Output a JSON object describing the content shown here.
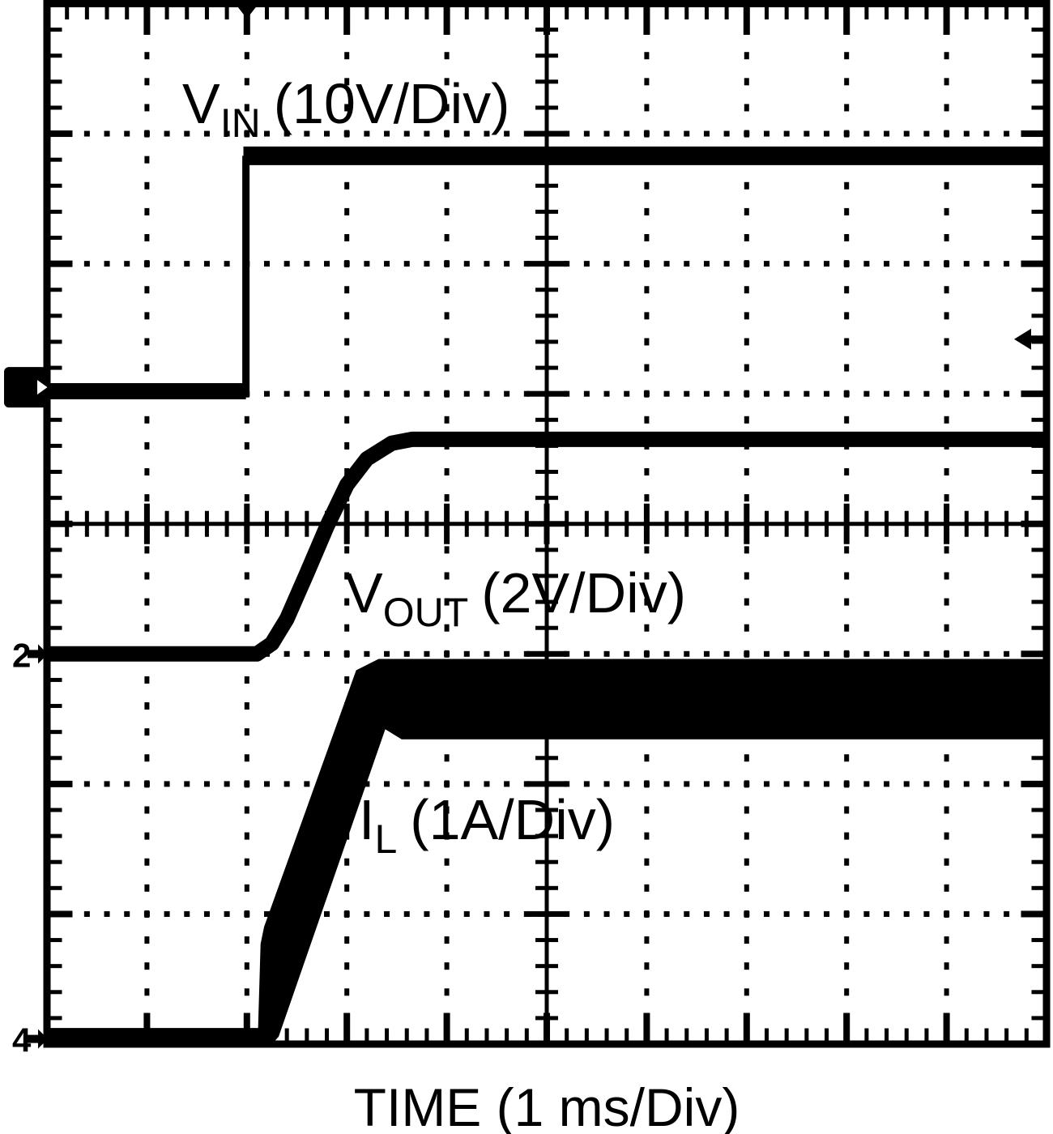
{
  "figure": {
    "kind": "oscilloscope-waveform-capture",
    "background_color": "#ffffff",
    "foreground_color": "#000000"
  },
  "chart_data": {
    "type": "line",
    "title": "",
    "xlabel": "TIME (1 ms/Div)",
    "ylabel": "",
    "x_divisions": 10,
    "y_divisions": 8,
    "time_per_div": "1 ms",
    "grid": "dotted oscilloscope graticule with solid center cross and edge tick marks",
    "legend_position": "inline-labels",
    "series": [
      {
        "id": "vin",
        "label": {
          "main": "V",
          "sub": "IN",
          "rest": "(10V/Div)"
        },
        "scale_per_div": "10V",
        "baseline_div_from_bottom": 5.02,
        "high_level_div_from_bottom": 6.83,
        "step_time_div": 2.0,
        "estimated_values": "input steps from 0 V to ~18 V at t = 2 divisions",
        "segments": [
          {
            "points": [
              [
                0,
                5.02
              ],
              [
                1.99,
                5.02
              ]
            ],
            "width": 20
          },
          {
            "points": [
              [
                1.99,
                5.02
              ],
              [
                1.99,
                6.83
              ]
            ],
            "width": 9
          },
          {
            "points": [
              [
                1.965,
                6.83
              ],
              [
                10,
                6.83
              ]
            ],
            "width": 23
          }
        ]
      },
      {
        "id": "vout",
        "label": {
          "main": "V",
          "sub": "OUT",
          "rest": "(2V/Div)"
        },
        "scale_per_div": "2V",
        "baseline_div_from_bottom": 3.0,
        "final_level_div_from_bottom": 4.65,
        "estimated_values": "output soft-starts from 0 V to ~3.3 V, settling ~1.5 ms after the input step",
        "segments": [
          {
            "points": [
              [
                0,
                3.0
              ],
              [
                2.1,
                3.0
              ],
              [
                2.25,
                3.08
              ],
              [
                2.4,
                3.27
              ],
              [
                2.6,
                3.62
              ],
              [
                2.8,
                3.98
              ],
              [
                3.0,
                4.3
              ],
              [
                3.2,
                4.5
              ],
              [
                3.45,
                4.62
              ],
              [
                3.65,
                4.65
              ],
              [
                10,
                4.65
              ]
            ],
            "width": 19
          }
        ]
      },
      {
        "id": "il",
        "label": {
          "main": "I",
          "sub": "L",
          "rest": "(1A/Div)"
        },
        "scale_per_div": "1A",
        "baseline_div_from_bottom": 0.06,
        "steady_band_div_from_bottom": [
          2.35,
          2.955
        ],
        "estimated_values": "inductor current ramps from 0 A to ~2.65 A average with ~0.6 A p-p switching ripple",
        "outline_div": [
          [
            0,
            0.118
          ],
          [
            2.12,
            0.118
          ],
          [
            2.145,
            0.77
          ],
          [
            2.18,
            0.9
          ],
          [
            3.1,
            2.87
          ],
          [
            3.32,
            2.955
          ],
          [
            10,
            2.955
          ],
          [
            10,
            2.35
          ],
          [
            3.55,
            2.35
          ],
          [
            3.38,
            2.43
          ],
          [
            2.31,
            0.06
          ],
          [
            2.24,
            0.0
          ],
          [
            0,
            0.0
          ]
        ]
      }
    ],
    "markers": [
      {
        "name": "trigger-time-marker",
        "glyph": "down-triangle",
        "x_div": 2.0
      },
      {
        "name": "ch1-ground-marker",
        "glyph": "square-right-arrow",
        "y_div_from_bottom": 5.05
      },
      {
        "name": "ch2-ground-marker",
        "glyph": "right-arrow",
        "label": "2",
        "y_div_from_bottom": 3.0
      },
      {
        "name": "ch4-ground-marker",
        "glyph": "right-arrow",
        "label": "4",
        "y_div_from_bottom": 0.04
      },
      {
        "name": "trigger-level-marker",
        "glyph": "left-arrow",
        "y_div_from_bottom": 5.42
      }
    ]
  },
  "labels": {
    "time_axis": "TIME (1 ms/Div)"
  }
}
